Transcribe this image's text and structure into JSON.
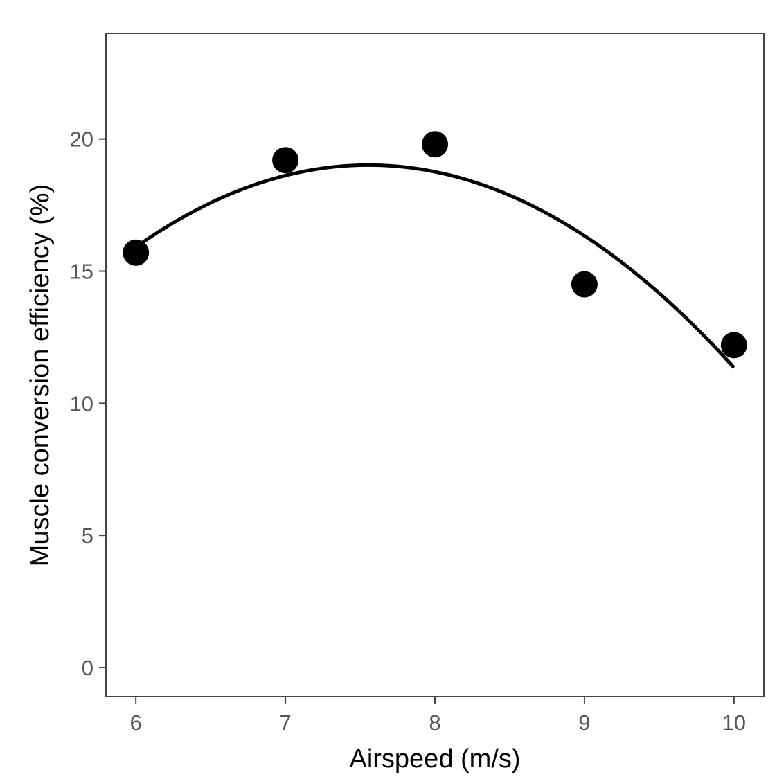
{
  "chart_data": {
    "type": "scatter",
    "title": "",
    "xlabel": "Airspeed (m/s)",
    "ylabel": "Muscle conversion efficiency (%)",
    "xlim": [
      5.8,
      10.2
    ],
    "ylim": [
      -1.1,
      24.0
    ],
    "xticks": [
      6,
      7,
      8,
      9,
      10
    ],
    "yticks": [
      0,
      5,
      10,
      15,
      20
    ],
    "grid": false,
    "legend": "none",
    "point_color": "#000000",
    "series": [
      {
        "points": [
          {
            "x": 6,
            "y": 15.7
          },
          {
            "x": 7,
            "y": 19.2
          },
          {
            "x": 8,
            "y": 19.8
          },
          {
            "x": 9,
            "y": 14.5
          },
          {
            "x": 10,
            "y": 12.2
          }
        ]
      }
    ],
    "fit": {
      "type": "quadratic",
      "curve": [
        {
          "x": 6.0,
          "y": 15.9
        },
        {
          "x": 6.5,
          "y": 17.6
        },
        {
          "x": 7.0,
          "y": 18.6
        },
        {
          "x": 7.5,
          "y": 19.0
        },
        {
          "x": 8.0,
          "y": 18.8
        },
        {
          "x": 8.5,
          "y": 17.9
        },
        {
          "x": 9.0,
          "y": 16.3
        },
        {
          "x": 9.5,
          "y": 14.1
        },
        {
          "x": 10.0,
          "y": 11.4
        }
      ]
    }
  }
}
